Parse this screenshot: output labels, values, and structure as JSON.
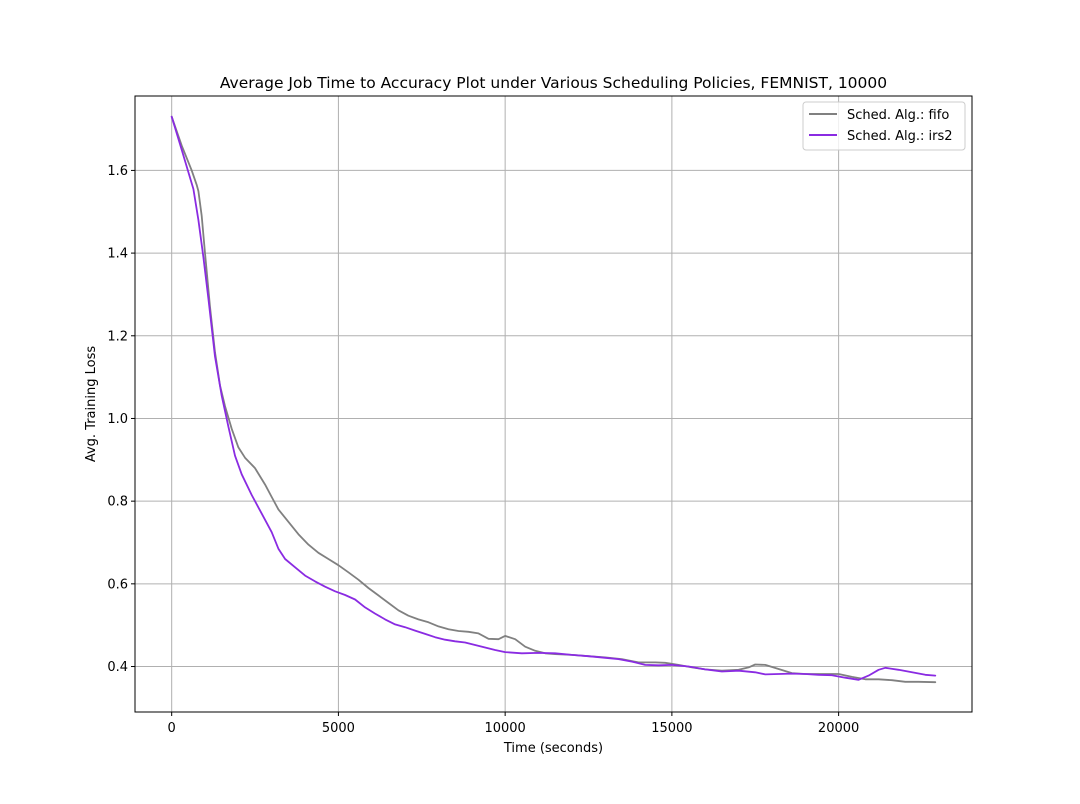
{
  "chart_data": {
    "type": "line",
    "title": "Average Job Time to Accuracy Plot under Various Scheduling Policies, FEMNIST, 10000",
    "xlabel": "Time (seconds)",
    "ylabel": "Avg. Training Loss",
    "xlim": [
      -1100,
      24000
    ],
    "ylim": [
      0.29,
      1.78
    ],
    "xticks": [
      0,
      5000,
      10000,
      15000,
      20000
    ],
    "xtick_labels": [
      "0",
      "5000",
      "10000",
      "15000",
      "20000"
    ],
    "yticks": [
      0.4,
      0.6,
      0.8,
      1.0,
      1.2,
      1.4,
      1.6
    ],
    "ytick_labels": [
      "0.4",
      "0.6",
      "0.8",
      "1.0",
      "1.2",
      "1.4",
      "1.6"
    ],
    "grid": true,
    "legend_position": "top-right",
    "series": [
      {
        "name": "Sched. Alg.: fifo",
        "color": "#808080",
        "x": [
          0,
          300,
          600,
          750,
          800,
          900,
          1000,
          1150,
          1300,
          1450,
          1600,
          1800,
          2000,
          2200,
          2500,
          2800,
          3000,
          3200,
          3500,
          3800,
          4100,
          4400,
          4700,
          5000,
          5300,
          5600,
          5900,
          6200,
          6500,
          6800,
          7100,
          7400,
          7700,
          8000,
          8300,
          8600,
          8900,
          9200,
          9500,
          9800,
          10000,
          10300,
          10600,
          10900,
          11200,
          11500,
          12000,
          12500,
          13000,
          13500,
          14000,
          14500,
          14800,
          15200,
          15600,
          16000,
          16500,
          17000,
          17300,
          17500,
          17800,
          18200,
          18600,
          19000,
          19500,
          20000,
          20400,
          20800,
          21200,
          21600,
          22000,
          22400,
          22900
        ],
        "y": [
          1.73,
          1.66,
          1.6,
          1.565,
          1.55,
          1.49,
          1.4,
          1.27,
          1.16,
          1.08,
          1.03,
          0.975,
          0.93,
          0.905,
          0.88,
          0.84,
          0.81,
          0.78,
          0.75,
          0.72,
          0.695,
          0.675,
          0.66,
          0.645,
          0.628,
          0.61,
          0.59,
          0.572,
          0.554,
          0.536,
          0.523,
          0.514,
          0.507,
          0.497,
          0.49,
          0.486,
          0.484,
          0.48,
          0.467,
          0.466,
          0.474,
          0.466,
          0.448,
          0.438,
          0.432,
          0.43,
          0.428,
          0.425,
          0.422,
          0.418,
          0.41,
          0.41,
          0.409,
          0.404,
          0.398,
          0.393,
          0.39,
          0.392,
          0.398,
          0.405,
          0.404,
          0.394,
          0.384,
          0.382,
          0.382,
          0.382,
          0.375,
          0.369,
          0.369,
          0.367,
          0.363,
          0.363,
          0.362
        ]
      },
      {
        "name": "Sched. Alg.: irs2",
        "color": "#8a2be2",
        "x": [
          0,
          300,
          650,
          800,
          950,
          1100,
          1300,
          1500,
          1700,
          1900,
          2100,
          2400,
          2700,
          3000,
          3200,
          3400,
          3700,
          4000,
          4300,
          4600,
          4900,
          5200,
          5500,
          5800,
          6100,
          6400,
          6700,
          7000,
          7300,
          7600,
          7900,
          8200,
          8500,
          8800,
          9100,
          9400,
          9700,
          10000,
          10500,
          11000,
          11500,
          12000,
          12500,
          13000,
          13400,
          13800,
          14200,
          14600,
          15000,
          15500,
          16000,
          16500,
          17000,
          17500,
          17800,
          18200,
          18600,
          19000,
          19400,
          19800,
          20200,
          20600,
          20900,
          21200,
          21400,
          21800,
          22200,
          22600,
          22900
        ],
        "y": [
          1.73,
          1.65,
          1.555,
          1.48,
          1.39,
          1.29,
          1.15,
          1.055,
          0.98,
          0.91,
          0.865,
          0.815,
          0.77,
          0.725,
          0.685,
          0.66,
          0.64,
          0.62,
          0.606,
          0.593,
          0.582,
          0.573,
          0.562,
          0.543,
          0.528,
          0.514,
          0.502,
          0.495,
          0.487,
          0.479,
          0.471,
          0.465,
          0.461,
          0.458,
          0.452,
          0.446,
          0.44,
          0.435,
          0.432,
          0.433,
          0.432,
          0.428,
          0.425,
          0.421,
          0.418,
          0.412,
          0.404,
          0.403,
          0.404,
          0.4,
          0.393,
          0.388,
          0.39,
          0.386,
          0.381,
          0.382,
          0.383,
          0.382,
          0.38,
          0.379,
          0.373,
          0.368,
          0.378,
          0.392,
          0.397,
          0.392,
          0.386,
          0.38,
          0.378
        ]
      }
    ]
  }
}
